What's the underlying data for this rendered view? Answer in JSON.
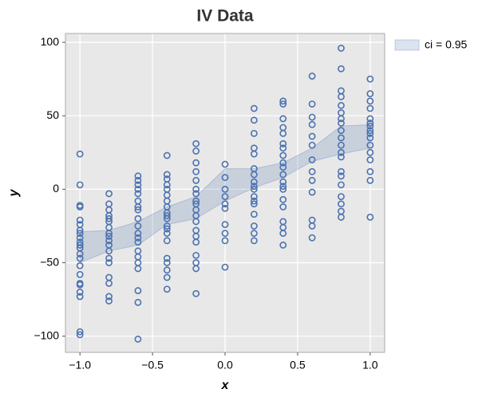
{
  "chart_data": {
    "type": "scatter",
    "title": "IV Data",
    "x_label": "x",
    "y_label": "y",
    "xlim": [
      -1.1,
      1.1
    ],
    "ylim": [
      -111,
      106
    ],
    "xticks": [
      {
        "value": -1.0,
        "label": "−1.0"
      },
      {
        "value": -0.5,
        "label": "−0.5"
      },
      {
        "value": 0,
        "label": "0.0"
      },
      {
        "value": 0.5,
        "label": "0.5"
      },
      {
        "value": 1.0,
        "label": "1.0"
      }
    ],
    "yticks": [
      {
        "value": -100,
        "label": "−100"
      },
      {
        "value": -50,
        "label": "−50"
      },
      0,
      50,
      100
    ],
    "grid": true,
    "legend": "upper right outside",
    "band": {
      "name": "ci = 0.95",
      "color": "#4c72b0",
      "x": [
        -1.0,
        -0.8,
        -0.6,
        -0.4,
        -0.2,
        0,
        0.2,
        0.4,
        0.6,
        0.8,
        1.0
      ],
      "lower": [
        -50,
        -42,
        -38,
        -24,
        -20,
        -8,
        1,
        8,
        19,
        24,
        28
      ],
      "upper": [
        -29,
        -28,
        -22,
        -12,
        -5,
        14,
        14,
        18,
        28,
        43,
        44
      ]
    },
    "series": [
      {
        "color": "#4c72b0",
        "x": [
          -1,
          -1,
          -1,
          -1,
          -1,
          -1,
          -1,
          -1,
          -1,
          -1,
          -1,
          -1,
          -1,
          -1,
          -1,
          -1,
          -1,
          -1,
          -1,
          -1,
          -1,
          -1,
          -0.8,
          -0.8,
          -0.8,
          -0.8,
          -0.8,
          -0.8,
          -0.8,
          -0.8,
          -0.8,
          -0.8,
          -0.8,
          -0.8,
          -0.8,
          -0.8,
          -0.8,
          -0.8,
          -0.8,
          -0.8,
          -0.6,
          -0.6,
          -0.6,
          -0.6,
          -0.6,
          -0.6,
          -0.6,
          -0.6,
          -0.6,
          -0.6,
          -0.6,
          -0.6,
          -0.6,
          -0.6,
          -0.6,
          -0.6,
          -0.6,
          -0.6,
          -0.6,
          -0.6,
          -0.4,
          -0.4,
          -0.4,
          -0.4,
          -0.4,
          -0.4,
          -0.4,
          -0.4,
          -0.4,
          -0.4,
          -0.4,
          -0.4,
          -0.4,
          -0.4,
          -0.4,
          -0.4,
          -0.4,
          -0.4,
          -0.4,
          -0.4,
          -0.2,
          -0.2,
          -0.2,
          -0.2,
          -0.2,
          -0.2,
          -0.2,
          -0.2,
          -0.2,
          -0.2,
          -0.2,
          -0.2,
          -0.2,
          -0.2,
          -0.2,
          -0.2,
          -0.2,
          -0.2,
          -0.2,
          0,
          0,
          0,
          0,
          0,
          0,
          0,
          0,
          0,
          0,
          0.2,
          0.2,
          0.2,
          0.2,
          0.2,
          0.2,
          0.2,
          0.2,
          0.2,
          0.2,
          0.2,
          0.2,
          0.2,
          0.2,
          0.2,
          0.2,
          0.2,
          0.4,
          0.4,
          0.4,
          0.4,
          0.4,
          0.4,
          0.4,
          0.4,
          0.4,
          0.4,
          0.4,
          0.4,
          0.4,
          0.4,
          0.4,
          0.4,
          0.4,
          0.4,
          0.4,
          0.4,
          0.6,
          0.6,
          0.6,
          0.6,
          0.6,
          0.6,
          0.6,
          0.6,
          0.6,
          0.6,
          0.6,
          0.6,
          0.6,
          0.8,
          0.8,
          0.8,
          0.8,
          0.8,
          0.8,
          0.8,
          0.8,
          0.8,
          0.8,
          0.8,
          0.8,
          0.8,
          0.8,
          0.8,
          0.8,
          0.8,
          0.8,
          0.8,
          0.8,
          1,
          1,
          1,
          1,
          1,
          1,
          1,
          1,
          1,
          1,
          1,
          1,
          1,
          1,
          1,
          1
        ],
        "values": [
          24,
          3,
          -11,
          -12,
          -21,
          -24,
          -28,
          -33,
          -36,
          -38,
          -44,
          -47,
          -52,
          -58,
          -64,
          -65,
          -70,
          -73,
          -97,
          -99,
          -30,
          -40,
          -3,
          -10,
          -14,
          -18,
          -22,
          -26,
          -30,
          -35,
          -38,
          -42,
          -47,
          -50,
          -60,
          -64,
          -73,
          -76,
          -20,
          -32,
          9,
          6,
          3,
          0,
          -3,
          -8,
          -14,
          -20,
          -25,
          -30,
          -33,
          -36,
          -42,
          -46,
          -50,
          -54,
          -69,
          -77,
          -102,
          -12,
          23,
          10,
          7,
          3,
          0,
          -4,
          -8,
          -12,
          -16,
          -20,
          -25,
          -30,
          -35,
          -47,
          -50,
          -55,
          -60,
          -68,
          -18,
          -27,
          31,
          26,
          18,
          12,
          6,
          0,
          -3,
          -8,
          -14,
          -18,
          -22,
          -28,
          -32,
          -36,
          -45,
          -50,
          -54,
          -71,
          -10,
          17,
          8,
          0,
          -5,
          -10,
          -13,
          -24,
          -30,
          -35,
          -53,
          55,
          47,
          38,
          28,
          24,
          10,
          5,
          0,
          -5,
          -10,
          -17,
          -25,
          -30,
          -35,
          -8,
          2,
          14,
          60,
          58,
          48,
          42,
          38,
          31,
          28,
          23,
          18,
          10,
          5,
          0,
          -7,
          -12,
          -22,
          -26,
          -30,
          -38,
          15,
          2,
          77,
          58,
          49,
          44,
          30,
          20,
          6,
          -2,
          -21,
          -25,
          -33,
          36,
          12,
          96,
          82,
          67,
          63,
          57,
          52,
          45,
          40,
          30,
          25,
          22,
          12,
          9,
          3,
          -5,
          -10,
          -15,
          -19,
          48,
          35,
          75,
          65,
          60,
          55,
          48,
          45,
          40,
          35,
          30,
          25,
          20,
          12,
          6,
          -19,
          43,
          38
        ]
      }
    ]
  }
}
